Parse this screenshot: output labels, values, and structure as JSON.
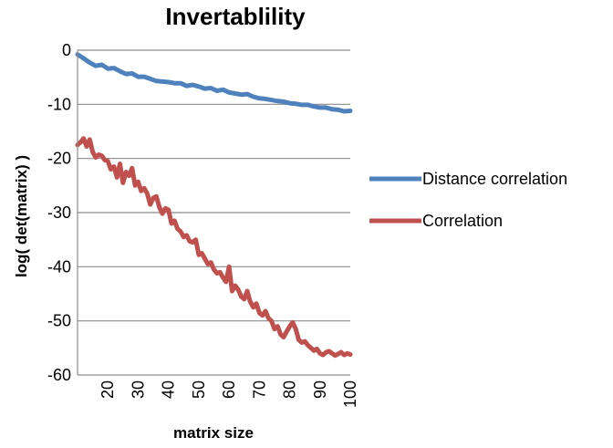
{
  "chart_data": {
    "type": "line",
    "title": "Invertablility",
    "xlabel": "matrix size",
    "ylabel": "log( det(matrix) )",
    "xlim": [
      10,
      100
    ],
    "ylim": [
      -60,
      0
    ],
    "x_ticks": [
      20,
      30,
      40,
      50,
      60,
      70,
      80,
      90,
      100
    ],
    "y_ticks": [
      0,
      -10,
      -20,
      -30,
      -40,
      -50,
      -60
    ],
    "grid": "horizontal",
    "legend_position": "right",
    "series": [
      {
        "name": "Distance correlation",
        "color": "#4f81bd",
        "x": [
          10,
          12,
          14,
          16,
          18,
          20,
          22,
          24,
          26,
          28,
          30,
          32,
          34,
          36,
          38,
          40,
          42,
          44,
          46,
          48,
          50,
          52,
          54,
          56,
          58,
          60,
          62,
          64,
          66,
          68,
          70,
          72,
          74,
          76,
          78,
          80,
          82,
          84,
          86,
          88,
          90,
          92,
          94,
          96,
          98,
          100
        ],
        "y": [
          -0.8,
          -1.5,
          -2.3,
          -2.9,
          -2.7,
          -3.4,
          -3.3,
          -3.9,
          -4.4,
          -4.3,
          -4.9,
          -4.9,
          -5.3,
          -5.7,
          -5.8,
          -5.9,
          -6.1,
          -6.1,
          -6.6,
          -6.4,
          -6.7,
          -7.1,
          -7.0,
          -7.5,
          -7.3,
          -7.8,
          -8.0,
          -8.2,
          -8.1,
          -8.6,
          -8.9,
          -9.0,
          -9.2,
          -9.4,
          -9.5,
          -9.8,
          -9.9,
          -10.1,
          -10.1,
          -10.4,
          -10.6,
          -10.6,
          -10.9,
          -11.0,
          -11.3,
          -11.2
        ]
      },
      {
        "name": "Correlation",
        "color": "#c0504d",
        "x": [
          10,
          11,
          12,
          13,
          14,
          15,
          16,
          17,
          18,
          19,
          20,
          21,
          22,
          23,
          24,
          25,
          26,
          27,
          28,
          29,
          30,
          31,
          32,
          33,
          34,
          35,
          36,
          37,
          38,
          39,
          40,
          41,
          42,
          43,
          44,
          45,
          46,
          47,
          48,
          49,
          50,
          51,
          52,
          53,
          54,
          55,
          56,
          57,
          58,
          59,
          60,
          61,
          62,
          63,
          64,
          65,
          66,
          67,
          68,
          69,
          70,
          71,
          72,
          73,
          74,
          75,
          76,
          77,
          78,
          79,
          80,
          81,
          82,
          83,
          84,
          85,
          86,
          87,
          88,
          89,
          90,
          91,
          92,
          93,
          94,
          95,
          96,
          97,
          98,
          99,
          100
        ],
        "y": [
          -17.5,
          -17.0,
          -16.3,
          -17.8,
          -16.5,
          -18.8,
          -19.8,
          -19.3,
          -19.5,
          -20.3,
          -20.5,
          -22.0,
          -21.5,
          -23.5,
          -21.0,
          -24.5,
          -22.5,
          -23.2,
          -21.8,
          -25.0,
          -24.3,
          -26.0,
          -25.5,
          -26.5,
          -28.5,
          -27.3,
          -27.0,
          -29.0,
          -30.2,
          -29.2,
          -29.5,
          -32.0,
          -31.5,
          -33.0,
          -33.5,
          -34.5,
          -34.2,
          -35.3,
          -35.5,
          -35.0,
          -37.8,
          -37.5,
          -38.5,
          -39.5,
          -39.2,
          -40.5,
          -41.2,
          -41.0,
          -42.0,
          -42.8,
          -40.0,
          -44.5,
          -43.5,
          -44.2,
          -45.5,
          -46.0,
          -44.5,
          -46.5,
          -47.5,
          -46.8,
          -48.5,
          -49.0,
          -48.2,
          -49.5,
          -50.0,
          -51.5,
          -51.0,
          -52.5,
          -53.0,
          -52.0,
          -51.0,
          -50.3,
          -51.5,
          -53.5,
          -54.0,
          -53.8,
          -54.5,
          -55.0,
          -55.5,
          -55.2,
          -56.0,
          -56.3,
          -55.8,
          -55.6,
          -56.0,
          -56.4,
          -56.1,
          -55.8,
          -56.3,
          -56.0,
          -56.2
        ]
      }
    ]
  }
}
